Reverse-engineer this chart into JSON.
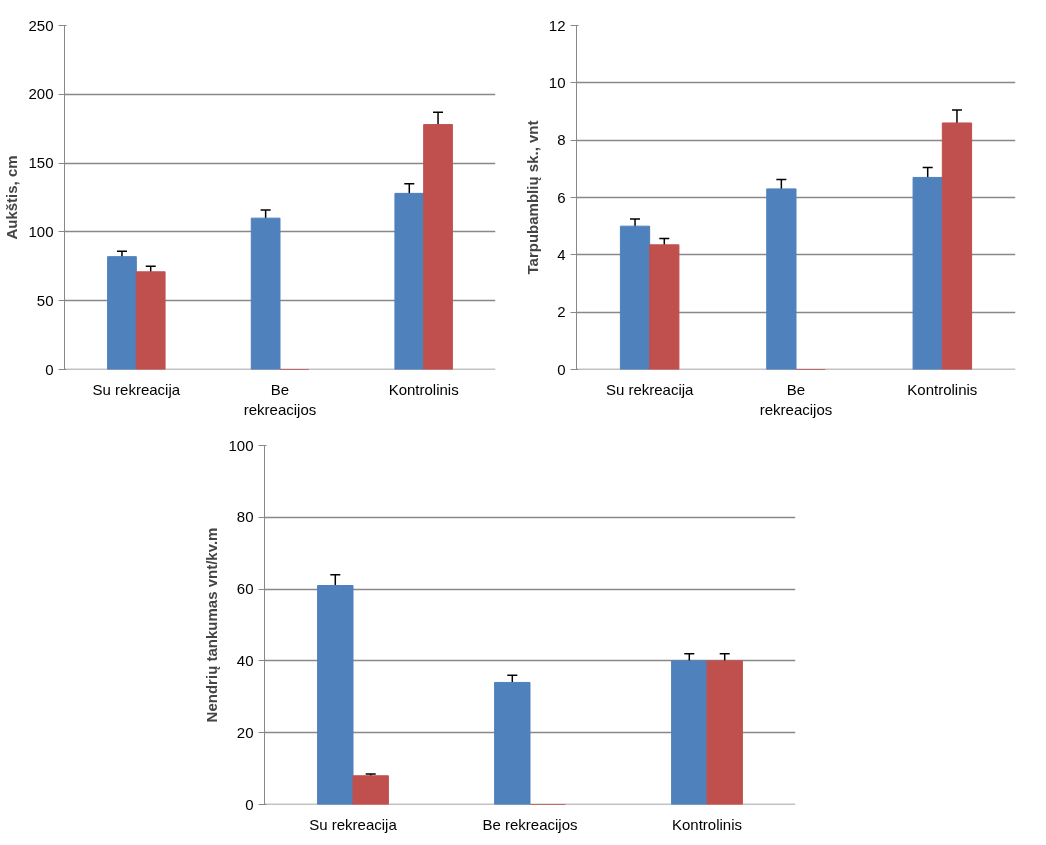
{
  "chart_data": [
    {
      "type": "bar",
      "ylabel": "Aukštis, cm",
      "categories": [
        "Su rekreacija",
        "Be rekreacijos",
        "Kontrolinis"
      ],
      "ylim": [
        0,
        250
      ],
      "yticks": [
        0,
        50,
        100,
        150,
        200,
        250
      ],
      "grid": "y",
      "series": [
        {
          "color": "#4f81bd",
          "values": [
            82,
            110,
            128
          ],
          "errors": [
            4,
            6,
            7
          ]
        },
        {
          "color": "#c0504d",
          "values": [
            71,
            0,
            178
          ],
          "errors": [
            4,
            null,
            9
          ]
        }
      ]
    },
    {
      "type": "bar",
      "ylabel": "Tarpubamblių sk., vnt",
      "categories": [
        "Su rekreacija",
        "Be rekreacijos",
        "Kontrolinis"
      ],
      "ylim": [
        0,
        12
      ],
      "yticks": [
        0,
        2,
        4,
        6,
        8,
        10,
        12
      ],
      "grid": "y",
      "series": [
        {
          "color": "#4f81bd",
          "values": [
            5.0,
            6.3,
            6.7
          ],
          "errors": [
            0.25,
            0.33,
            0.35
          ]
        },
        {
          "color": "#c0504d",
          "values": [
            4.35,
            0,
            8.6
          ],
          "errors": [
            0.22,
            null,
            0.45
          ]
        }
      ]
    },
    {
      "type": "bar",
      "ylabel": "Nendrių tankumas vnt/kv.m",
      "categories": [
        "Su rekreacija",
        "Be rekreacijos",
        "Kontrolinis"
      ],
      "ylim": [
        0,
        100
      ],
      "yticks": [
        0,
        20,
        40,
        60,
        80,
        100
      ],
      "grid": "y",
      "series": [
        {
          "color": "#4f81bd",
          "values": [
            61,
            34,
            40
          ],
          "errors": [
            3,
            2,
            2
          ]
        },
        {
          "color": "#c0504d",
          "values": [
            8,
            0,
            40
          ],
          "errors": [
            0.5,
            null,
            2
          ]
        }
      ]
    }
  ]
}
